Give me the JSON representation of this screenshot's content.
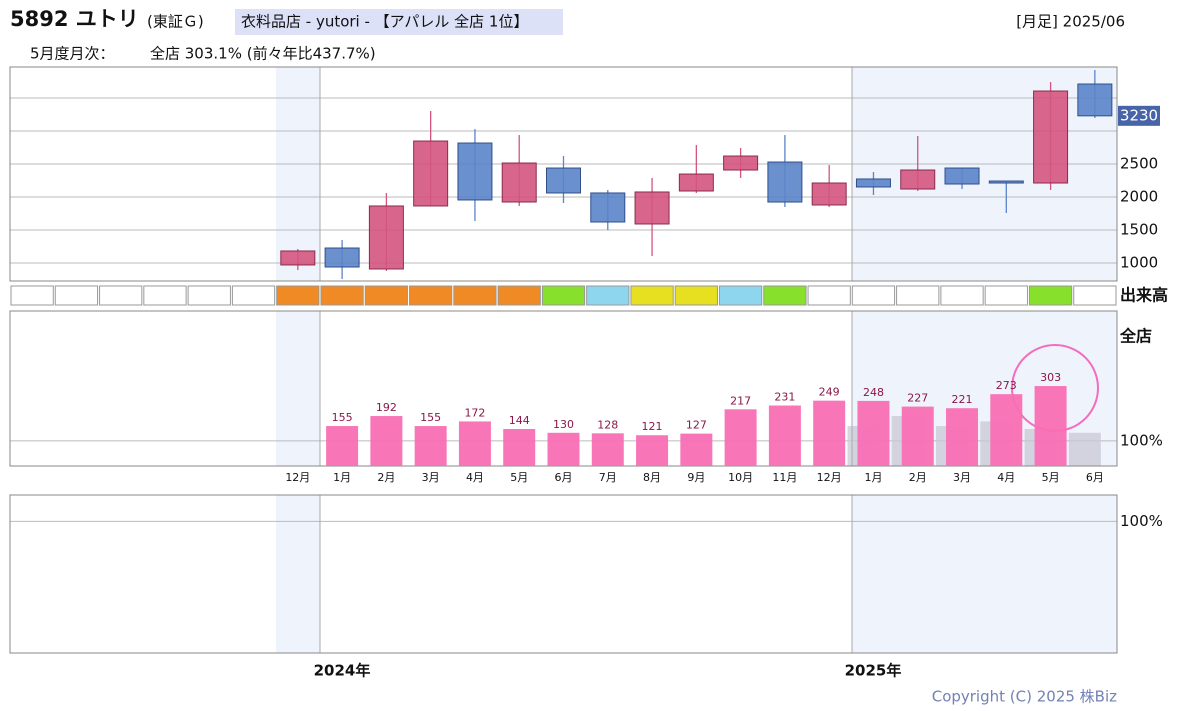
{
  "header": {
    "code_name": "5892 ユトリ",
    "market": "(東証Ｇ)",
    "industry": "衣料品店 - yutori - 【アパレル 全店 1位】",
    "period": "[月足] 2025/06",
    "monthly_label": "5月度月次：",
    "monthly_value": "全店 303.1% (前々年比437.7%)"
  },
  "chart_data": [
    {
      "type": "candlestick",
      "open": [
        null,
        null,
        null,
        null,
        null,
        null,
        970,
        1227,
        909,
        1864,
        2818,
        1924,
        2439,
        2061,
        1591,
        2091,
        2409,
        2530,
        1879,
        2273,
        2121,
        2439,
        2242,
        2212,
        3712
      ],
      "high": [
        null,
        null,
        null,
        null,
        null,
        null,
        1212,
        1348,
        2061,
        3303,
        3030,
        2939,
        2621,
        2106,
        2288,
        2788,
        2742,
        2939,
        2485,
        2379,
        2924,
        2439,
        2242,
        3742,
        3924
      ],
      "low": [
        null,
        null,
        null,
        null,
        null,
        null,
        894,
        758,
        879,
        1864,
        1636,
        1864,
        1909,
        1500,
        1106,
        2061,
        2288,
        1848,
        1848,
        2030,
        2091,
        2121,
        1758,
        2106,
        3197
      ],
      "close": [
        null,
        null,
        null,
        null,
        null,
        null,
        1182,
        939,
        1864,
        2848,
        1955,
        2515,
        2061,
        1621,
        2076,
        2348,
        2621,
        1924,
        2212,
        2152,
        2409,
        2197,
        2212,
        3606,
        3230
      ],
      "up_color": "#d4557f",
      "down_color": "#5b84c9",
      "ylim": [
        727,
        3970
      ],
      "yticks": [
        1000,
        1500,
        2000,
        2500
      ],
      "grid_values": [
        1000,
        1500,
        2000,
        2500,
        3000,
        3500
      ],
      "volume_label": "出来高",
      "volume_colors": [
        "#ffffff",
        "#ffffff",
        "#ffffff",
        "#ffffff",
        "#ffffff",
        "#ffffff",
        "#ef8a24",
        "#ef8a24",
        "#ef8a24",
        "#ef8a24",
        "#ef8a24",
        "#ef8a24",
        "#86e02c",
        "#8ed6ee",
        "#e6e020",
        "#e6e020",
        "#8ed6ee",
        "#86e02c",
        "#ffffff",
        "#ffffff",
        "#ffffff",
        "#ffffff",
        "#ffffff",
        "#86e02c",
        "#ffffff"
      ]
    },
    {
      "type": "bar",
      "y_label": "全店",
      "categories": [
        null,
        null,
        null,
        null,
        null,
        null,
        "12月",
        "1月",
        "2月",
        "3月",
        "4月",
        "5月",
        "6月",
        "7月",
        "8月",
        "9月",
        "10月",
        "11月",
        "12月",
        "1月",
        "2月",
        "3月",
        "4月",
        "5月",
        "6月"
      ],
      "series": [
        {
          "color": "#c8c8d6",
          "values": [
            null,
            null,
            null,
            null,
            null,
            null,
            null,
            null,
            null,
            null,
            null,
            null,
            null,
            null,
            null,
            null,
            null,
            null,
            null,
            155,
            192,
            155,
            172,
            144,
            130
          ]
        },
        {
          "color": "#f86fb4",
          "values": [
            null,
            null,
            null,
            null,
            null,
            null,
            null,
            155,
            192,
            155,
            172,
            144,
            130,
            128,
            121,
            127,
            217,
            231,
            249,
            248,
            227,
            221,
            273,
            303,
            null
          ]
        }
      ],
      "ylim": [
        7,
        581
      ],
      "yticks": [
        {
          "value": 100,
          "label": "100%"
        }
      ]
    },
    {
      "type": "panel",
      "ylim": [
        0,
        120
      ],
      "yticks": [
        {
          "value": 100,
          "label": "100%"
        }
      ]
    }
  ],
  "footer": {
    "years": [
      "2024年",
      "2025年"
    ],
    "copyright": "Copyright (C) 2025 株Biz"
  }
}
